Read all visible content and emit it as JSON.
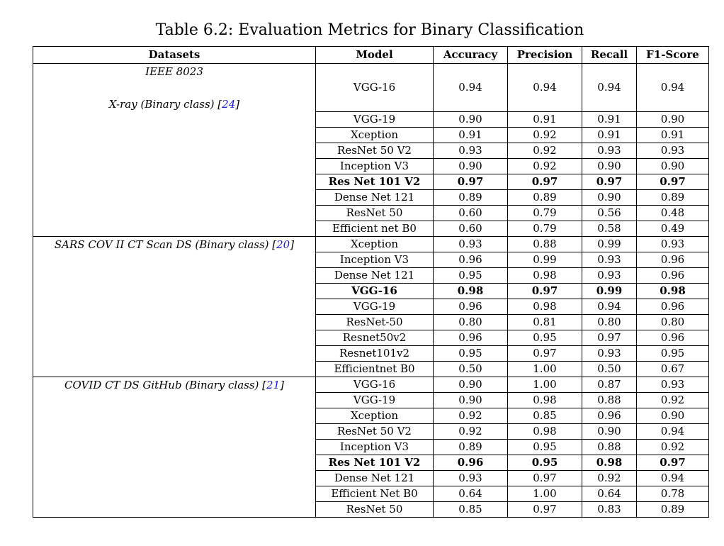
{
  "caption": {
    "label": "Table 6.2:",
    "text": "Evaluation Metrics for Binary Classification"
  },
  "headers": [
    "Datasets",
    "Model",
    "Accuracy",
    "Precision",
    "Recall",
    "F1-Score"
  ],
  "groups": [
    {
      "dataset_lines": [
        "IEEE 8023",
        "X-ray (Binary class) "
      ],
      "cite": "24",
      "cite_brackets": [
        "[",
        "]"
      ],
      "rows": [
        {
          "model": "VGG-16",
          "accuracy": "0.94",
          "precision": "0.94",
          "recall": "0.94",
          "f1": "0.94",
          "bold": false
        },
        {
          "model": "VGG-19",
          "accuracy": "0.90",
          "precision": "0.91",
          "recall": "0.91",
          "f1": "0.90",
          "bold": false
        },
        {
          "model": "Xception",
          "accuracy": "0.91",
          "precision": "0.92",
          "recall": "0.91",
          "f1": "0.91",
          "bold": false
        },
        {
          "model": "ResNet 50 V2",
          "accuracy": "0.93",
          "precision": "0.92",
          "recall": "0.93",
          "f1": "0.93",
          "bold": false
        },
        {
          "model": "Inception V3",
          "accuracy": "0.90",
          "precision": "0.92",
          "recall": "0.90",
          "f1": "0.90",
          "bold": false
        },
        {
          "model": "Res Net 101 V2",
          "accuracy": "0.97",
          "precision": "0.97",
          "recall": "0.97",
          "f1": "0.97",
          "bold": true
        },
        {
          "model": "Dense Net 121",
          "accuracy": "0.89",
          "precision": "0.89",
          "recall": "0.90",
          "f1": "0.89",
          "bold": false
        },
        {
          "model": "ResNet 50",
          "accuracy": "0.60",
          "precision": "0.79",
          "recall": "0.56",
          "f1": "0.48",
          "bold": false
        },
        {
          "model": "Efficient net B0",
          "accuracy": "0.60",
          "precision": "0.79",
          "recall": "0.58",
          "f1": "0.49",
          "bold": false
        }
      ]
    },
    {
      "dataset_lines": [
        "SARS COV II CT Scan DS (Binary class) "
      ],
      "cite": "20",
      "cite_brackets": [
        "[",
        "]"
      ],
      "rows": [
        {
          "model": "Xception",
          "accuracy": "0.93",
          "precision": "0.88",
          "recall": "0.99",
          "f1": "0.93",
          "bold": false
        },
        {
          "model": "Inception V3",
          "accuracy": "0.96",
          "precision": "0.99",
          "recall": "0.93",
          "f1": "0.96",
          "bold": false
        },
        {
          "model": "Dense Net 121",
          "accuracy": "0.95",
          "precision": "0.98",
          "recall": "0.93",
          "f1": "0.96",
          "bold": false
        },
        {
          "model": "VGG-16",
          "accuracy": "0.98",
          "precision": "0.97",
          "recall": "0.99",
          "f1": "0.98",
          "bold": true
        },
        {
          "model": "VGG-19",
          "accuracy": "0.96",
          "precision": "0.98",
          "recall": "0.94",
          "f1": "0.96",
          "bold": false
        },
        {
          "model": "ResNet-50",
          "accuracy": "0.80",
          "precision": "0.81",
          "recall": "0.80",
          "f1": "0.80",
          "bold": false
        },
        {
          "model": "Resnet50v2",
          "accuracy": "0.96",
          "precision": "0.95",
          "recall": "0.97",
          "f1": "0.96",
          "bold": false
        },
        {
          "model": "Resnet101v2",
          "accuracy": "0.95",
          "precision": "0.97",
          "recall": "0.93",
          "f1": "0.95",
          "bold": false
        },
        {
          "model": "Efficientnet B0",
          "accuracy": "0.50",
          "precision": "1.00",
          "recall": "0.50",
          "f1": "0.67",
          "bold": false
        }
      ]
    },
    {
      "dataset_lines": [
        "COVID CT DS GitHub (Binary class) "
      ],
      "cite": "21",
      "cite_brackets": [
        "[",
        "]"
      ],
      "rows": [
        {
          "model": "VGG-16",
          "accuracy": "0.90",
          "precision": "1.00",
          "recall": "0.87",
          "f1": "0.93",
          "bold": false
        },
        {
          "model": "VGG-19",
          "accuracy": "0.90",
          "precision": "0.98",
          "recall": "0.88",
          "f1": "0.92",
          "bold": false
        },
        {
          "model": "Xception",
          "accuracy": "0.92",
          "precision": "0.85",
          "recall": "0.96",
          "f1": "0.90",
          "bold": false
        },
        {
          "model": "ResNet 50 V2",
          "accuracy": "0.92",
          "precision": "0.98",
          "recall": "0.90",
          "f1": "0.94",
          "bold": false
        },
        {
          "model": "Inception V3",
          "accuracy": "0.89",
          "precision": "0.95",
          "recall": "0.88",
          "f1": "0.92",
          "bold": false
        },
        {
          "model": "Res Net 101 V2",
          "accuracy": "0.96",
          "precision": "0.95",
          "recall": "0.98",
          "f1": "0.97",
          "bold": true
        },
        {
          "model": "Dense Net 121",
          "accuracy": "0.93",
          "precision": "0.97",
          "recall": "0.92",
          "f1": "0.94",
          "bold": false
        },
        {
          "model": "Efficient Net B0",
          "accuracy": "0.64",
          "precision": "1.00",
          "recall": "0.64",
          "f1": "0.78",
          "bold": false
        },
        {
          "model": "ResNet 50",
          "accuracy": "0.85",
          "precision": "0.97",
          "recall": "0.83",
          "f1": "0.89",
          "bold": false
        }
      ]
    }
  ],
  "colors": {
    "citation": "#1a1adb",
    "border": "#000000"
  }
}
